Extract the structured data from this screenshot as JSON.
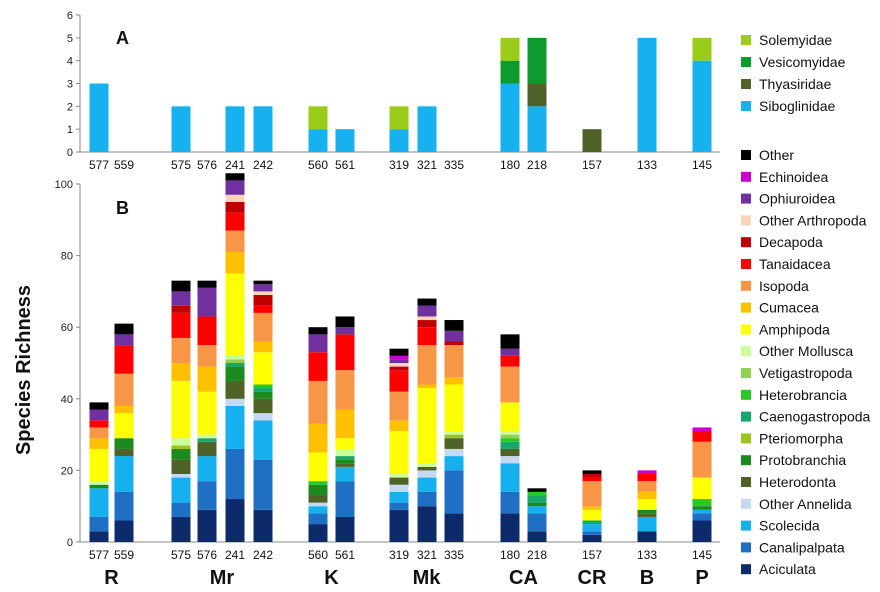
{
  "chart_data": [
    {
      "type": "bar",
      "stacked": true,
      "panel_label": "A",
      "categories": [
        "577",
        "559",
        "575",
        "576",
        "241",
        "242",
        "560",
        "561",
        "319",
        "321",
        "335",
        "180",
        "218",
        "157",
        "133",
        "145"
      ],
      "ylim": [
        0,
        6
      ],
      "yticks": [
        "0",
        "1",
        "2",
        "3",
        "4",
        "5",
        "6"
      ],
      "series": [
        {
          "name": "Siboglinidae",
          "color": "#17b1ef",
          "values": [
            3,
            0,
            2,
            0,
            2,
            2,
            1,
            1,
            1,
            2,
            0,
            3,
            2,
            0,
            5,
            4
          ]
        },
        {
          "name": "Thyasiridae",
          "color": "#4f6228",
          "values": [
            0,
            0,
            0,
            0,
            0,
            0,
            0,
            0,
            0,
            0,
            0,
            0,
            1,
            1,
            0,
            0
          ]
        },
        {
          "name": "Vesicomyidae",
          "color": "#0e9a2d",
          "values": [
            0,
            0,
            0,
            0,
            0,
            0,
            0,
            0,
            0,
            0,
            0,
            1,
            2,
            0,
            0,
            0
          ]
        },
        {
          "name": "Solemyidae",
          "color": "#9ccc1a",
          "values": [
            0,
            0,
            0,
            0,
            0,
            0,
            1,
            0,
            1,
            0,
            0,
            1,
            0,
            0,
            0,
            1
          ]
        }
      ]
    },
    {
      "type": "bar",
      "stacked": true,
      "panel_label": "B",
      "ylabel": "Species Richness",
      "categories": [
        "577",
        "559",
        "575",
        "576",
        "241",
        "242",
        "560",
        "561",
        "319",
        "321",
        "335",
        "180",
        "218",
        "157",
        "133",
        "145"
      ],
      "groups": [
        {
          "label": "R",
          "members": [
            "577",
            "559"
          ]
        },
        {
          "label": "Mr",
          "members": [
            "575",
            "576",
            "241",
            "242"
          ]
        },
        {
          "label": "K",
          "members": [
            "560",
            "561"
          ]
        },
        {
          "label": "Mk",
          "members": [
            "319",
            "321",
            "335"
          ]
        },
        {
          "label": "CA",
          "members": [
            "180",
            "218"
          ]
        },
        {
          "label": "CR",
          "members": [
            "157"
          ]
        },
        {
          "label": "B",
          "members": [
            "133"
          ]
        },
        {
          "label": "P",
          "members": [
            "145"
          ]
        }
      ],
      "ylim": [
        0,
        100
      ],
      "yticks": [
        "0",
        "20",
        "40",
        "60",
        "80",
        "100"
      ],
      "series": [
        {
          "name": "Aciculata",
          "color": "#0d2a6b",
          "values": [
            3,
            6,
            7,
            9,
            12,
            9,
            5,
            7,
            9,
            10,
            8,
            8,
            3,
            2,
            3,
            6
          ]
        },
        {
          "name": "Canalipalpata",
          "color": "#1f6fc4",
          "values": [
            4,
            8,
            4,
            8,
            14,
            14,
            3,
            10,
            2,
            4,
            12,
            6,
            5,
            1,
            0,
            2
          ]
        },
        {
          "name": "Scolecida",
          "color": "#16b0ee",
          "values": [
            8,
            10,
            7,
            7,
            12,
            11,
            2,
            4,
            3,
            4,
            4,
            8,
            2,
            2,
            4,
            1
          ]
        },
        {
          "name": "Other Annelida",
          "color": "#c6d9f1",
          "values": [
            0,
            0,
            1,
            0,
            2,
            2,
            1,
            0,
            2,
            2,
            2,
            2,
            0,
            0,
            0,
            0
          ]
        },
        {
          "name": "Heterodonta",
          "color": "#4f6228",
          "values": [
            0,
            2,
            4,
            4,
            5,
            4,
            2,
            1,
            2,
            1,
            3,
            2,
            0,
            0,
            1,
            0
          ]
        },
        {
          "name": "Protobranchia",
          "color": "#1d8a1d",
          "values": [
            1,
            3,
            3,
            0,
            4,
            2,
            3,
            1,
            0,
            0,
            0,
            0,
            1,
            0,
            1,
            1
          ]
        },
        {
          "name": "Pteriomorpha",
          "color": "#9bc41d",
          "values": [
            0,
            0,
            1,
            0,
            0,
            0,
            0,
            0,
            0,
            0,
            1,
            0,
            0,
            0,
            0,
            0
          ]
        },
        {
          "name": "Caenogastropoda",
          "color": "#18a76a",
          "values": [
            0,
            0,
            0,
            1,
            1,
            1,
            0,
            1,
            0,
            0,
            0,
            2,
            2,
            1,
            0,
            0
          ]
        },
        {
          "name": "Heterobrancia",
          "color": "#27c927",
          "values": [
            0,
            0,
            0,
            0,
            0,
            1,
            1,
            0,
            0,
            0,
            0,
            1,
            1,
            0,
            0,
            2
          ]
        },
        {
          "name": "Vetigastropoda",
          "color": "#92d050",
          "values": [
            0,
            0,
            0,
            0,
            1,
            0,
            0,
            0,
            0,
            0,
            0,
            1,
            0,
            0,
            0,
            0
          ]
        },
        {
          "name": "Other Mollusca",
          "color": "#ccff99",
          "values": [
            1,
            0,
            2,
            1,
            1,
            0,
            0,
            2,
            1,
            1,
            1,
            1,
            0,
            0,
            0,
            0
          ]
        },
        {
          "name": "Amphipoda",
          "color": "#ffff00",
          "values": [
            9,
            7,
            16,
            12,
            23,
            9,
            8,
            3,
            12,
            21,
            13,
            8,
            0,
            3,
            3,
            6
          ]
        },
        {
          "name": "Cumacea",
          "color": "#ffc000",
          "values": [
            3,
            2,
            5,
            7,
            6,
            3,
            8,
            8,
            3,
            1,
            2,
            0,
            0,
            1,
            2,
            0
          ]
        },
        {
          "name": "Isopoda",
          "color": "#f79646",
          "values": [
            3,
            9,
            7,
            6,
            6,
            8,
            12,
            11,
            8,
            11,
            9,
            10,
            0,
            7,
            3,
            10
          ]
        },
        {
          "name": "Tanaidacea",
          "color": "#ff0000",
          "values": [
            2,
            8,
            7,
            8,
            5,
            2,
            8,
            10,
            6,
            5,
            0,
            3,
            0,
            1,
            2,
            3
          ]
        },
        {
          "name": "Decapoda",
          "color": "#c00000",
          "values": [
            0,
            0,
            2,
            0,
            3,
            3,
            0,
            0,
            1,
            2,
            1,
            0,
            0,
            1,
            0,
            0
          ]
        },
        {
          "name": "Other Arthropoda",
          "color": "#fbd5b5",
          "values": [
            0,
            0,
            0,
            0,
            2,
            1,
            0,
            0,
            1,
            1,
            0,
            0,
            0,
            0,
            0,
            0
          ]
        },
        {
          "name": "Ophiuroidea",
          "color": "#7030a0",
          "values": [
            3,
            3,
            4,
            8,
            4,
            2,
            5,
            2,
            1,
            3,
            3,
            2,
            0,
            0,
            0,
            0
          ]
        },
        {
          "name": "Echinoidea",
          "color": "#cc00cc",
          "values": [
            0,
            0,
            0,
            0,
            0,
            0,
            0,
            0,
            1,
            0,
            0,
            0,
            0,
            0,
            1,
            1
          ]
        },
        {
          "name": "Other",
          "color": "#000000",
          "values": [
            2,
            3,
            3,
            2,
            2,
            1,
            2,
            3,
            2,
            2,
            3,
            4,
            1,
            1,
            0,
            0
          ]
        }
      ]
    }
  ]
}
